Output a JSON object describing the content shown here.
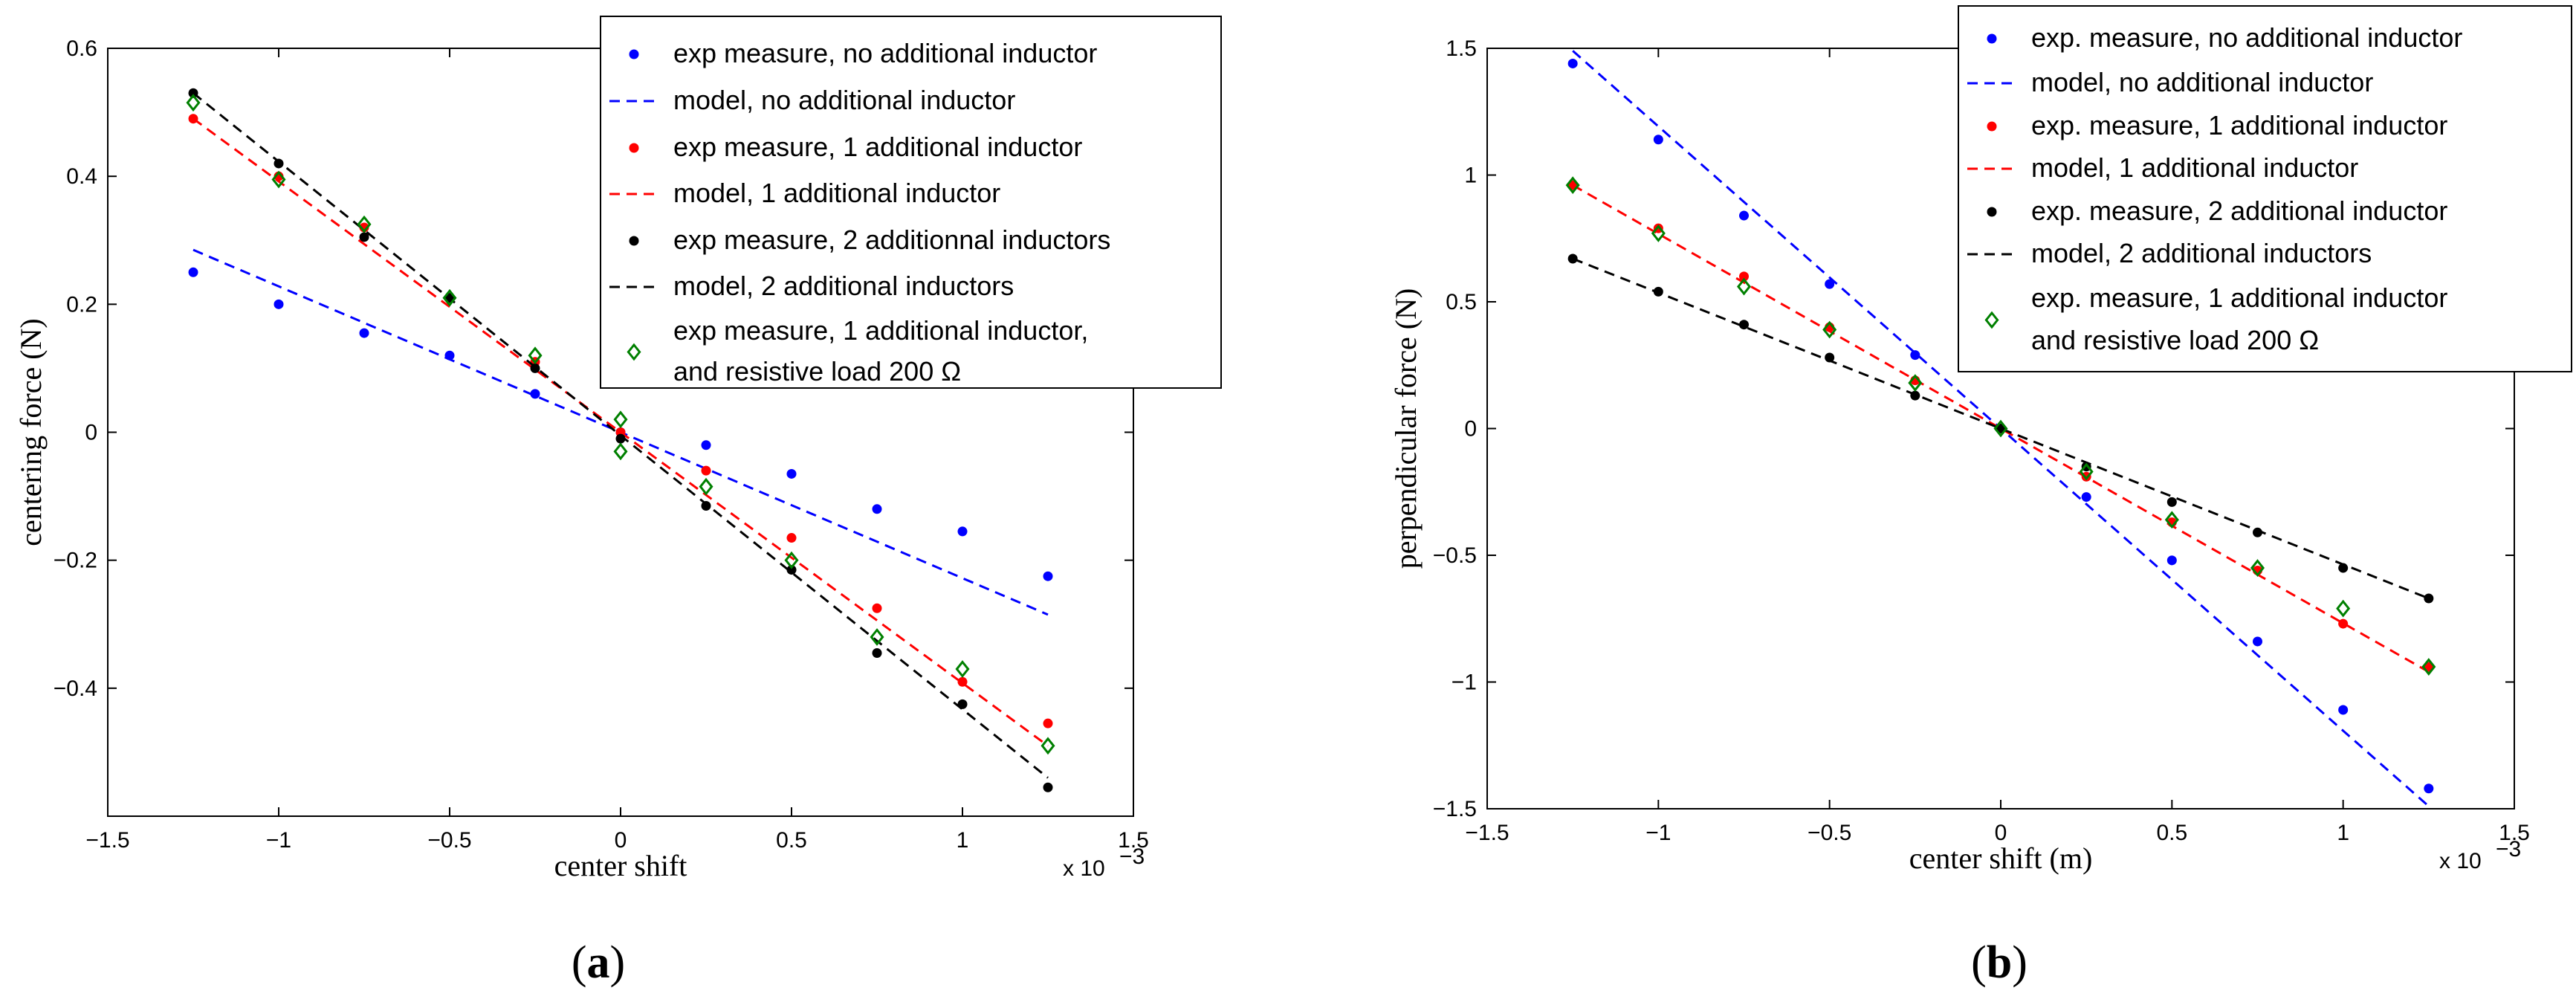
{
  "chart_data": [
    {
      "type": "scatter",
      "panel_caption": {
        "open": "(",
        "letter": "a",
        "close": ")"
      },
      "xlabel": "center shift",
      "ylabel": "centering force (N)",
      "xlim": [
        -1.5,
        1.5
      ],
      "ylim": [
        -0.6,
        0.6
      ],
      "xticks": [
        "−1.5",
        "−1",
        "−0.5",
        "0",
        "0.5",
        "1",
        "1.5"
      ],
      "yticks": [
        "−0.4",
        "−0.2",
        "0",
        "0.2",
        "0.4",
        "0.6"
      ],
      "xtick_values": [
        -1.5,
        -1,
        -0.5,
        0,
        0.5,
        1,
        1.5
      ],
      "ytick_values": [
        -0.4,
        -0.2,
        0,
        0.2,
        0.4,
        0.6
      ],
      "x_multiplier": "x 10",
      "x_multiplier_exp": "−3",
      "series": [
        {
          "name": "exp measure, no additional inductor",
          "kind": "dots",
          "color": "#0000ff",
          "x": [
            -1.25,
            -1,
            -0.75,
            -0.5,
            -0.25,
            0,
            0.25,
            0.5,
            0.75,
            1,
            1.25
          ],
          "y": [
            0.25,
            0.2,
            0.155,
            0.12,
            0.06,
            0.0,
            -0.02,
            -0.065,
            -0.12,
            -0.155,
            -0.225
          ]
        },
        {
          "name": "model, no additional inductor",
          "kind": "line",
          "color": "#0000ff",
          "x": [
            -1.25,
            1.25
          ],
          "y": [
            0.285,
            -0.285
          ]
        },
        {
          "name": "exp measure, 1 additional inductor",
          "kind": "dots",
          "color": "#ff0000",
          "x": [
            -1.25,
            -1,
            -0.75,
            -0.5,
            -0.25,
            0,
            0.25,
            0.5,
            0.75,
            1,
            1.25
          ],
          "y": [
            0.49,
            0.4,
            0.32,
            0.21,
            0.11,
            0.0,
            -0.06,
            -0.165,
            -0.275,
            -0.39,
            -0.455
          ]
        },
        {
          "name": "model, 1 additional inductor",
          "kind": "line",
          "color": "#ff0000",
          "x": [
            -1.25,
            1.25
          ],
          "y": [
            0.49,
            -0.49
          ]
        },
        {
          "name": "exp measure, 2 additionnal inductors",
          "kind": "dots",
          "color": "#000000",
          "x": [
            -1.25,
            -1,
            -0.75,
            -0.5,
            -0.25,
            0,
            0.25,
            0.5,
            0.75,
            1,
            1.25
          ],
          "y": [
            0.53,
            0.42,
            0.305,
            0.21,
            0.1,
            -0.01,
            -0.115,
            -0.215,
            -0.345,
            -0.425,
            -0.555
          ]
        },
        {
          "name": "model, 2 additional inductors",
          "kind": "line",
          "color": "#000000",
          "x": [
            -1.25,
            1.25
          ],
          "y": [
            0.53,
            -0.54
          ]
        },
        {
          "name": "exp measure, 1 additional inductor, and resistive load 200 Ω",
          "kind": "diamonds",
          "color": "#008000",
          "legend_lines": [
            "exp measure, 1 additional inductor,",
            "and resistive load 200 Ω"
          ],
          "x": [
            -1.25,
            -1,
            -0.75,
            -0.5,
            -0.25,
            0,
            0,
            0.25,
            0.5,
            0.75,
            1,
            1.25
          ],
          "y": [
            0.515,
            0.395,
            0.325,
            0.21,
            0.12,
            0.02,
            -0.03,
            -0.085,
            -0.2,
            -0.32,
            -0.37,
            -0.49
          ]
        }
      ]
    },
    {
      "type": "scatter",
      "panel_caption": {
        "open": "(",
        "letter": "b",
        "close": ")"
      },
      "xlabel": "center shift (m)",
      "ylabel": "perpendicular force (N)",
      "xlim": [
        -1.5,
        1.5
      ],
      "ylim": [
        -1.5,
        1.5
      ],
      "xticks": [
        "−1.5",
        "−1",
        "−0.5",
        "0",
        "0.5",
        "1",
        "1.5"
      ],
      "yticks": [
        "−1.5",
        "−1",
        "−0.5",
        "0",
        "0.5",
        "1",
        "1.5"
      ],
      "xtick_values": [
        -1.5,
        -1,
        -0.5,
        0,
        0.5,
        1,
        1.5
      ],
      "ytick_values": [
        -1.5,
        -1,
        -0.5,
        0,
        0.5,
        1,
        1.5
      ],
      "x_multiplier": "x 10",
      "x_multiplier_exp": "−3",
      "series": [
        {
          "name": "exp. measure, no additional inductor",
          "kind": "dots",
          "color": "#0000ff",
          "x": [
            -1.25,
            -1,
            -0.75,
            -0.5,
            -0.25,
            0,
            0.25,
            0.5,
            0.75,
            1,
            1.25
          ],
          "y": [
            1.44,
            1.14,
            0.84,
            0.57,
            0.29,
            0.0,
            -0.27,
            -0.52,
            -0.84,
            -1.11,
            -1.42
          ]
        },
        {
          "name": "model, no additional inductor",
          "kind": "line",
          "color": "#0000ff",
          "x": [
            -1.25,
            1.25
          ],
          "y": [
            1.49,
            -1.49
          ]
        },
        {
          "name": "exp. measure, 1 additional inductor",
          "kind": "dots",
          "color": "#ff0000",
          "x": [
            -1.25,
            -1,
            -0.75,
            -0.5,
            -0.25,
            0,
            0.25,
            0.5,
            0.75,
            1,
            1.25
          ],
          "y": [
            0.96,
            0.79,
            0.6,
            0.4,
            0.19,
            0.0,
            -0.19,
            -0.37,
            -0.56,
            -0.77,
            -0.94
          ]
        },
        {
          "name": "model, 1 additional inductor",
          "kind": "line",
          "color": "#ff0000",
          "x": [
            -1.25,
            1.25
          ],
          "y": [
            0.96,
            -0.96
          ]
        },
        {
          "name": "exp. measure, 2 additional inductor",
          "kind": "dots",
          "color": "#000000",
          "x": [
            -1.25,
            -1,
            -0.75,
            -0.5,
            -0.25,
            0,
            0.25,
            0.5,
            0.75,
            1,
            1.25
          ],
          "y": [
            0.67,
            0.54,
            0.41,
            0.28,
            0.13,
            0.0,
            -0.15,
            -0.29,
            -0.41,
            -0.55,
            -0.67
          ]
        },
        {
          "name": "model, 2 additional inductors",
          "kind": "line",
          "color": "#000000",
          "x": [
            -1.25,
            1.25
          ],
          "y": [
            0.67,
            -0.67
          ]
        },
        {
          "name": "exp. measure, 1 additional inductor and resistive load 200 Ω",
          "kind": "diamonds",
          "color": "#008000",
          "legend_lines": [
            "exp. measure, 1 additional inductor",
            "and resistive load 200 Ω"
          ],
          "x": [
            -1.25,
            -1,
            -0.75,
            -0.5,
            -0.25,
            0,
            0.25,
            0.5,
            0.75,
            1,
            1.25
          ],
          "y": [
            0.96,
            0.77,
            0.56,
            0.39,
            0.18,
            0.0,
            -0.17,
            -0.36,
            -0.55,
            -0.71,
            -0.94
          ]
        }
      ]
    }
  ]
}
